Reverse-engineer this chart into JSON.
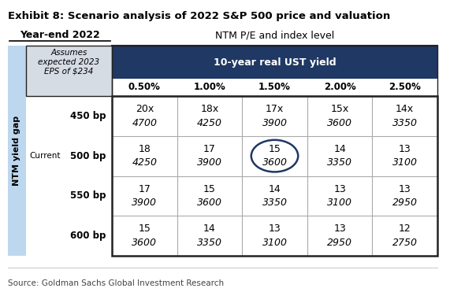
{
  "title": "Exhibit 8: Scenario analysis of 2022 S&P 500 price and valuation",
  "source": "Source: Goldman Sachs Global Investment Research",
  "year_end_label": "Year-end 2022",
  "col_header_main": "NTM P/E and index level",
  "col_header_sub": "10-year real UST yield",
  "row_header_main": "NTM yield gap",
  "assumes_label": "Assumes\nexpected 2023\nEPS of $234",
  "yield_cols": [
    "0.50%",
    "1.00%",
    "1.50%",
    "2.00%",
    "2.50%"
  ],
  "rows": [
    {
      "bp_label": "450 bp",
      "current_label": "",
      "values": [
        [
          "20x",
          "4700"
        ],
        [
          "18x",
          "4250"
        ],
        [
          "17x",
          "3900"
        ],
        [
          "15x",
          "3600"
        ],
        [
          "14x",
          "3350"
        ]
      ]
    },
    {
      "bp_label": "500 bp",
      "current_label": "Current",
      "values": [
        [
          "18",
          "4250"
        ],
        [
          "17",
          "3900"
        ],
        [
          "15",
          "3600"
        ],
        [
          "14",
          "3350"
        ],
        [
          "13",
          "3100"
        ]
      ]
    },
    {
      "bp_label": "550 bp",
      "current_label": "",
      "values": [
        [
          "17",
          "3900"
        ],
        [
          "15",
          "3600"
        ],
        [
          "14",
          "3350"
        ],
        [
          "13",
          "3100"
        ],
        [
          "13",
          "2950"
        ]
      ]
    },
    {
      "bp_label": "600 bp",
      "current_label": "",
      "values": [
        [
          "15",
          "3600"
        ],
        [
          "14",
          "3350"
        ],
        [
          "13",
          "3100"
        ],
        [
          "13",
          "2950"
        ],
        [
          "12",
          "2750"
        ]
      ]
    }
  ],
  "highlighted_cell": [
    1,
    2
  ],
  "dark_blue": "#1f3864",
  "light_blue_bg": "#bdd7ee",
  "assumes_bg": "#d6dce4",
  "grid_line_color": "#aaaaaa",
  "outer_border_color": "#222222",
  "title_color": "#000000",
  "source_color": "#444444",
  "highlight_circle_color": "#1f3864"
}
